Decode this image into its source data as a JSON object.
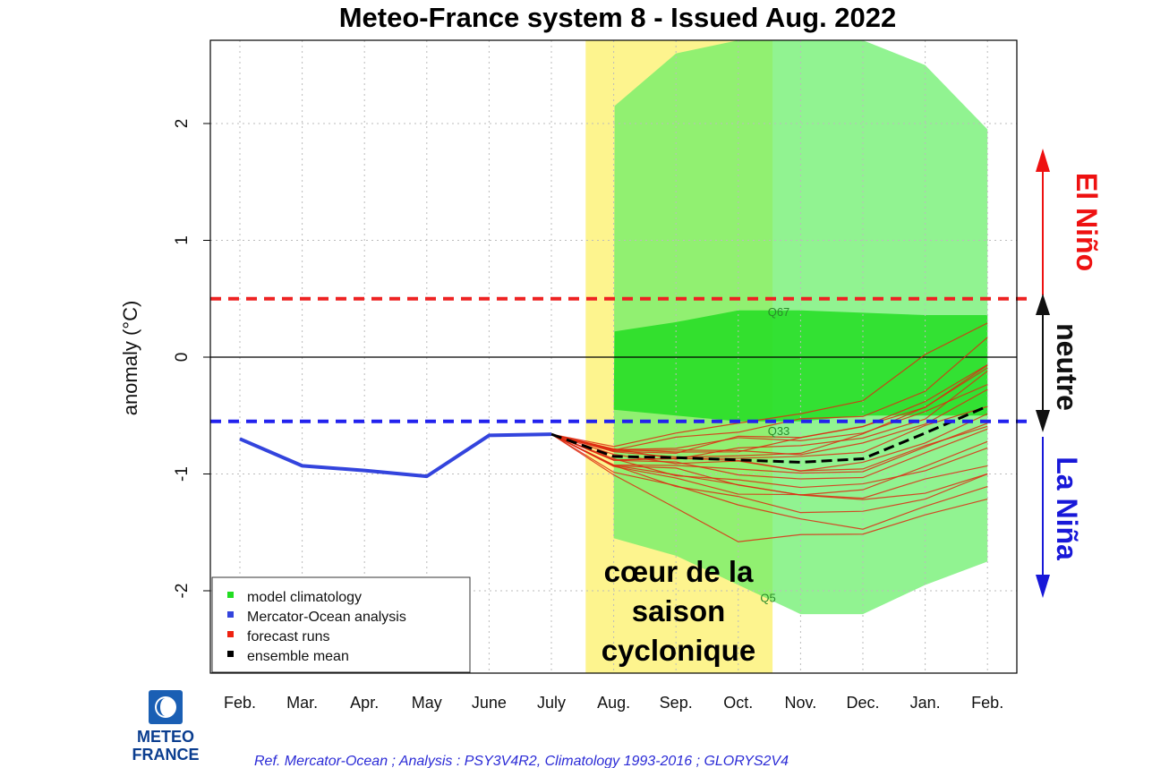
{
  "title": "Meteo-France system 8    -   Issued Aug. 2022",
  "chart_data": {
    "type": "line",
    "title": "Meteo-France system 8    -   Issued Aug. 2022",
    "ylabel": "anomaly (°C)",
    "ylim": [
      -2.7,
      2.7
    ],
    "yticks": [
      -2,
      -1,
      0,
      1,
      2
    ],
    "x": [
      "Feb.",
      "Mar.",
      "Apr.",
      "May",
      "June",
      "July",
      "Aug.",
      "Sep.",
      "Oct.",
      "Nov.",
      "Dec.",
      "Jan.",
      "Feb."
    ],
    "grid": true,
    "legend_position": "bottom-left",
    "legend": [
      {
        "label": "model climatology",
        "color": "#22dd22"
      },
      {
        "label": "Mercator-Ocean analysis",
        "color": "#3344dd"
      },
      {
        "label": "forecast runs",
        "color": "#ee2211"
      },
      {
        "label": "ensemble mean",
        "color": "#000000"
      }
    ],
    "analysis": {
      "name": "Mercator-Ocean analysis",
      "x": [
        "Feb.",
        "Mar.",
        "Apr.",
        "May",
        "June",
        "July"
      ],
      "values": [
        -0.7,
        -0.93,
        -0.97,
        -1.02,
        -0.67,
        -0.66
      ]
    },
    "ensemble_mean": {
      "name": "ensemble mean",
      "x": [
        "July",
        "Aug.",
        "Sep.",
        "Oct.",
        "Nov.",
        "Dec.",
        "Jan.",
        "Feb."
      ],
      "values": [
        -0.66,
        -0.85,
        -0.86,
        -0.88,
        -0.9,
        -0.87,
        -0.65,
        -0.42
      ]
    },
    "forecast_runs": [
      [
        -0.66,
        -0.78,
        -0.7,
        -0.62,
        -0.55,
        -0.5,
        -0.3,
        0.2
      ],
      [
        -0.66,
        -0.82,
        -0.8,
        -0.7,
        -0.68,
        -0.6,
        -0.4,
        -0.1
      ],
      [
        -0.66,
        -0.9,
        -0.95,
        -0.95,
        -1.0,
        -0.95,
        -0.8,
        -0.55
      ],
      [
        -0.66,
        -0.95,
        -1.1,
        -1.2,
        -1.3,
        -1.35,
        -1.2,
        -1.0
      ],
      [
        -0.66,
        -1.0,
        -1.3,
        -1.55,
        -1.55,
        -1.5,
        -1.35,
        -1.2
      ],
      [
        -0.66,
        -0.8,
        -0.75,
        -0.72,
        -0.7,
        -0.65,
        -0.45,
        -0.25
      ],
      [
        -0.66,
        -0.85,
        -0.9,
        -0.85,
        -0.85,
        -0.8,
        -0.6,
        -0.4
      ],
      [
        -0.66,
        -0.9,
        -1.0,
        -1.05,
        -1.1,
        -1.1,
        -0.95,
        -0.8
      ],
      [
        -0.66,
        -0.75,
        -0.65,
        -0.55,
        -0.5,
        -0.35,
        0.0,
        0.3
      ],
      [
        -0.66,
        -0.88,
        -0.85,
        -0.9,
        -0.95,
        -0.98,
        -0.75,
        -0.6
      ],
      [
        -0.66,
        -0.92,
        -1.05,
        -1.15,
        -1.2,
        -1.2,
        -1.05,
        -0.9
      ],
      [
        -0.66,
        -0.8,
        -0.85,
        -0.8,
        -0.75,
        -0.7,
        -0.5,
        -0.15
      ],
      [
        -0.66,
        -0.86,
        -0.92,
        -1.0,
        -1.05,
        -1.0,
        -0.85,
        -0.6
      ],
      [
        -0.66,
        -0.95,
        -1.0,
        -1.1,
        -1.15,
        -1.25,
        -1.15,
        -1.0
      ],
      [
        -0.66,
        -0.78,
        -0.82,
        -0.78,
        -0.72,
        -0.58,
        -0.38,
        -0.05
      ],
      [
        -0.66,
        -0.84,
        -0.88,
        -0.92,
        -0.96,
        -0.9,
        -0.72,
        -0.5
      ],
      [
        -0.66,
        -0.9,
        -0.98,
        -1.08,
        -1.18,
        -1.12,
        -0.95,
        -0.7
      ],
      [
        -0.66,
        -0.83,
        -0.78,
        -0.8,
        -0.82,
        -0.75,
        -0.55,
        -0.3
      ],
      [
        -0.66,
        -0.97,
        -1.1,
        -1.25,
        -1.4,
        -1.45,
        -1.3,
        -1.1
      ],
      [
        -0.66,
        -0.81,
        -0.84,
        -0.86,
        -0.8,
        -0.68,
        -0.42,
        -0.1
      ]
    ],
    "climatology_bands": [
      {
        "label": "Q5-Q95",
        "x": [
          "Aug.",
          "Sep.",
          "Oct.",
          "Nov.",
          "Dec.",
          "Jan.",
          "Feb."
        ],
        "upper": [
          2.15,
          2.6,
          2.75,
          2.75,
          2.75,
          2.5,
          1.95
        ],
        "lower": [
          -1.55,
          -1.7,
          -1.95,
          -2.2,
          -2.2,
          -1.95,
          -1.75
        ]
      },
      {
        "label": "Q33-Q67",
        "x": [
          "Aug.",
          "Sep.",
          "Oct.",
          "Nov.",
          "Dec.",
          "Jan.",
          "Feb."
        ],
        "upper": [
          0.22,
          0.3,
          0.4,
          0.4,
          0.38,
          0.36,
          0.36
        ],
        "lower": [
          -0.45,
          -0.5,
          -0.55,
          -0.55,
          -0.5,
          -0.5,
          -0.5
        ]
      }
    ],
    "band_labels": [
      "Q67",
      "Q33",
      "Q5"
    ],
    "thresholds": [
      {
        "label": "El Niño",
        "value": 0.5,
        "color": "#ee2222"
      },
      {
        "label": "La Niña",
        "value": -0.55,
        "color": "#2222ee"
      }
    ],
    "zones": [
      {
        "label": "El Niño",
        "color": "#ee1111"
      },
      {
        "label": "neutre",
        "color": "#111111"
      },
      {
        "label": "La Niña",
        "color": "#1818d8"
      }
    ],
    "annotation": "cœur de la saison cyclonique",
    "annotation_lines": [
      "cœur de la",
      "saison",
      "cyclonique"
    ]
  },
  "logo": {
    "line1": "METEO",
    "line2": "FRANCE"
  },
  "reference": "Ref. Mercator-Ocean ;  Analysis : PSY3V4R2, Climatology 1993-2016 ; GLORYS2V4"
}
